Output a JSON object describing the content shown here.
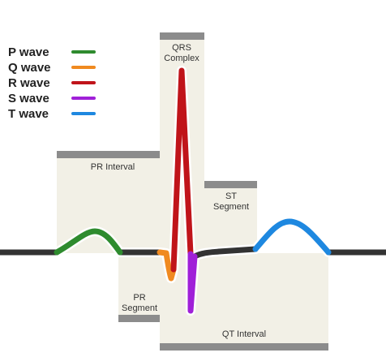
{
  "colors": {
    "baseline": "#333333",
    "box_fill": "#f2f0e6",
    "box_bar": "#8c8c8c",
    "halo": "#ffffff"
  },
  "legend": [
    {
      "label": "P wave",
      "color": "#2e8b2e"
    },
    {
      "label": "Q wave",
      "color": "#f08a20"
    },
    {
      "label": "R wave",
      "color": "#c0141a"
    },
    {
      "label": "S wave",
      "color": "#a020d8"
    },
    {
      "label": "T wave",
      "color": "#1e88e0"
    }
  ],
  "segments": {
    "pr_interval": {
      "label": "PR Interval"
    },
    "qrs_complex": {
      "line1": "QRS",
      "line2": "Complex"
    },
    "st_segment": {
      "line1": "ST",
      "line2": "Segment"
    },
    "pr_segment": {
      "line1": "PR",
      "line2": "Segment"
    },
    "qt_interval": {
      "label": "QT Interval"
    }
  }
}
